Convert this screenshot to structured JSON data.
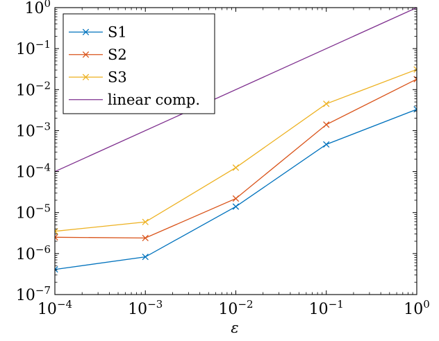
{
  "chart_data": {
    "type": "line",
    "xscale": "log",
    "yscale": "log",
    "xlabel": "ε",
    "ylabel": "",
    "xlim": [
      0.0001,
      1
    ],
    "ylim": [
      1e-07,
      1
    ],
    "x_ticks": [
      {
        "value": 0.0001,
        "base": "10",
        "exp": "−4"
      },
      {
        "value": 0.001,
        "base": "10",
        "exp": "−3"
      },
      {
        "value": 0.01,
        "base": "10",
        "exp": "−2"
      },
      {
        "value": 0.1,
        "base": "10",
        "exp": "−1"
      },
      {
        "value": 1,
        "base": "10",
        "exp": "0"
      }
    ],
    "y_ticks": [
      {
        "value": 1e-07,
        "base": "10",
        "exp": "−7"
      },
      {
        "value": 1e-06,
        "base": "10",
        "exp": "−6"
      },
      {
        "value": 1e-05,
        "base": "10",
        "exp": "−5"
      },
      {
        "value": 0.0001,
        "base": "10",
        "exp": "−4"
      },
      {
        "value": 0.001,
        "base": "10",
        "exp": "−3"
      },
      {
        "value": 0.01,
        "base": "10",
        "exp": "−2"
      },
      {
        "value": 0.1,
        "base": "10",
        "exp": "−1"
      },
      {
        "value": 1,
        "base": "10",
        "exp": "0"
      }
    ],
    "legend": "top-left",
    "grid": false,
    "series": [
      {
        "name": "S1",
        "color": "#0072bd",
        "marker": "x",
        "x": [
          0.0001,
          0.001,
          0.01,
          0.1,
          1
        ],
        "y": [
          4.1e-07,
          8.3e-07,
          1.4e-05,
          0.00046,
          0.0033
        ]
      },
      {
        "name": "S2",
        "color": "#d95319",
        "marker": "x",
        "x": [
          0.0001,
          0.001,
          0.01,
          0.1,
          1
        ],
        "y": [
          2.5e-06,
          2.4e-06,
          2.2e-05,
          0.0014,
          0.018
        ]
      },
      {
        "name": "S3",
        "color": "#edb120",
        "marker": "x",
        "x": [
          0.0001,
          0.001,
          0.01,
          0.1,
          1
        ],
        "y": [
          3.5e-06,
          5.9e-06,
          0.000125,
          0.0045,
          0.031
        ]
      },
      {
        "name": "linear comp.",
        "color": "#7e2f8e",
        "marker": "none",
        "x": [
          0.0001,
          1
        ],
        "y": [
          0.0001,
          1
        ]
      }
    ]
  }
}
